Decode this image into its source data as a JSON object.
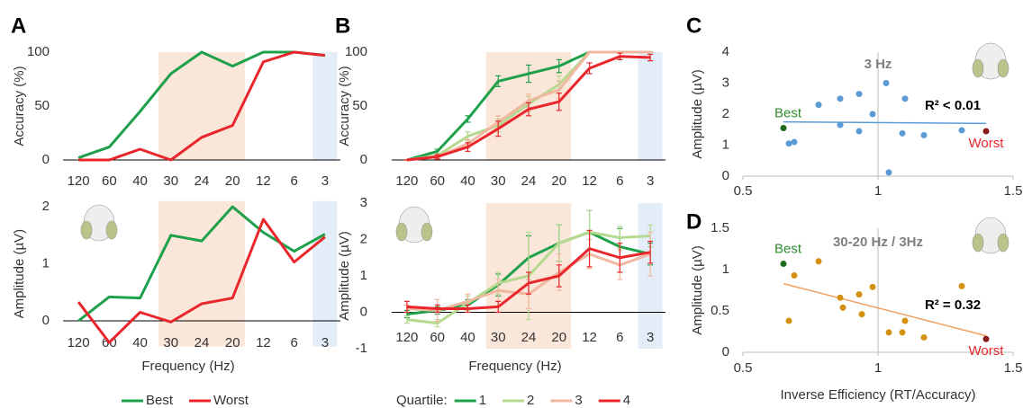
{
  "chart_data": [
    {
      "type": "line",
      "panel": "A",
      "ylabel": "Accuracy (%)",
      "categories": [
        "120",
        "60",
        "40",
        "30",
        "24",
        "20",
        "12",
        "6",
        "3"
      ],
      "series": [
        {
          "color": "#1fa04a",
          "values": [
            2,
            12,
            45,
            80,
            100,
            87,
            100,
            100,
            97
          ]
        },
        {
          "color": "#e8262b",
          "values": [
            0,
            0,
            10,
            0,
            21,
            32,
            91,
            100,
            97
          ]
        }
      ],
      "ylim": [
        0,
        100
      ],
      "yticks": [
        0,
        50,
        100
      ],
      "highlight": [
        {
          "from": "30",
          "to": "20",
          "color": "#fbe7da"
        },
        {
          "from": "3",
          "to": "3",
          "color": "#e3edf8"
        }
      ]
    },
    {
      "type": "line",
      "ylabel": "Amplitude (µV)",
      "xlabel": "Frequency (Hz)",
      "categories": [
        "120",
        "60",
        "40",
        "30",
        "24",
        "20",
        "12",
        "6",
        "3"
      ],
      "series": [
        {
          "name": "Best",
          "color": "#1fa04a",
          "values": [
            0,
            0.42,
            0.4,
            1.5,
            1.4,
            2.0,
            1.55,
            1.22,
            1.52
          ]
        },
        {
          "name": "Worst",
          "color": "#e8262b",
          "values": [
            0.33,
            -0.38,
            0.15,
            -0.02,
            0.3,
            0.4,
            1.78,
            1.03,
            1.47
          ]
        }
      ],
      "ylim": [
        -0.45,
        2.1
      ],
      "yticks": [
        0,
        1,
        2
      ],
      "legend": "bottom",
      "highlight": [
        {
          "from": "30",
          "to": "20",
          "color": "#fbe7da"
        },
        {
          "from": "3",
          "to": "3",
          "color": "#e3edf8"
        }
      ]
    },
    {
      "type": "line",
      "panel": "B",
      "ylabel": "Accuracy (%)",
      "categories": [
        "120",
        "60",
        "40",
        "30",
        "24",
        "20",
        "12",
        "6",
        "3"
      ],
      "series": [
        {
          "color": "#1fa04a",
          "values": [
            0,
            8,
            38,
            73,
            80,
            87,
            100,
            100,
            100
          ],
          "errors": [
            0,
            2,
            3,
            5,
            8,
            6,
            0,
            0,
            0
          ]
        },
        {
          "color": "#b5d98f",
          "values": [
            0,
            4,
            22,
            32,
            52,
            70,
            100,
            100,
            100
          ],
          "errors": [
            0,
            2,
            4,
            6,
            7,
            8,
            0,
            0,
            0
          ]
        },
        {
          "color": "#f0b8a0",
          "values": [
            0,
            3,
            15,
            35,
            55,
            65,
            100,
            100,
            100
          ],
          "errors": [
            0,
            2,
            4,
            6,
            6,
            8,
            0,
            0,
            0
          ]
        },
        {
          "color": "#e8262b",
          "values": [
            0,
            3,
            12,
            29,
            47,
            54,
            85,
            96,
            95
          ],
          "errors": [
            0,
            2,
            4,
            7,
            6,
            8,
            5,
            3,
            3
          ]
        }
      ],
      "ylim": [
        0,
        100
      ],
      "yticks": [
        0,
        50,
        100
      ],
      "highlight": [
        {
          "from": "30",
          "to": "20",
          "color": "#fbe7da"
        },
        {
          "from": "3",
          "to": "3",
          "color": "#e3edf8"
        }
      ]
    },
    {
      "type": "line",
      "ylabel": "Amplitude (µV)",
      "xlabel": "Frequency (Hz)",
      "categories": [
        "120",
        "60",
        "40",
        "30",
        "24",
        "20",
        "12",
        "6",
        "3"
      ],
      "series": [
        {
          "name": "1",
          "color": "#1fa04a",
          "values": [
            -0.05,
            0.05,
            0.2,
            0.75,
            1.5,
            1.9,
            2.2,
            1.8,
            1.6
          ],
          "errors": [
            0.1,
            0.1,
            0.15,
            0.3,
            0.6,
            0.5,
            0.6,
            0.5,
            0.3
          ]
        },
        {
          "name": "2",
          "color": "#b5d98f",
          "values": [
            -0.2,
            -0.3,
            0.25,
            0.8,
            1.0,
            1.9,
            2.2,
            2.05,
            2.1
          ],
          "errors": [
            0.1,
            0.1,
            0.2,
            0.3,
            1.2,
            0.5,
            0.6,
            0.3,
            0.3
          ]
        },
        {
          "name": "3",
          "color": "#f0b8a0",
          "values": [
            0.1,
            0.05,
            0.3,
            0.6,
            0.5,
            1.1,
            1.6,
            1.3,
            1.6
          ],
          "errors": [
            0.1,
            0.3,
            0.2,
            0.3,
            0.4,
            0.5,
            0.4,
            0.4,
            0.6
          ]
        },
        {
          "name": "4",
          "color": "#e8262b",
          "values": [
            0.15,
            0.1,
            0.1,
            0.15,
            0.8,
            1.0,
            1.75,
            1.5,
            1.65
          ],
          "errors": [
            0.15,
            0.1,
            0.1,
            0.15,
            0.3,
            0.3,
            0.5,
            0.4,
            0.3
          ]
        }
      ],
      "ylim": [
        -1,
        3
      ],
      "yticks": [
        -1,
        0,
        1,
        2,
        3
      ],
      "legend": "bottom",
      "legend_title": "Quartile:",
      "highlight": [
        {
          "from": "30",
          "to": "20",
          "color": "#fbe7da"
        },
        {
          "from": "3",
          "to": "3",
          "color": "#e3edf8"
        }
      ]
    },
    {
      "type": "scatter",
      "panel": "C",
      "title": "3 Hz",
      "ylabel": "Amplitude (µV)",
      "annotation": "R² < 0.01",
      "series": [
        {
          "color": "#5b9bd5",
          "x": [
            0.67,
            0.69,
            0.78,
            0.86,
            0.86,
            0.93,
            0.93,
            0.98,
            1.03,
            1.04,
            1.09,
            1.1,
            1.17,
            1.31
          ],
          "y": [
            1.05,
            1.1,
            2.3,
            2.5,
            1.65,
            2.65,
            1.45,
            2.0,
            3.0,
            0.12,
            1.38,
            2.5,
            1.32,
            1.48
          ]
        },
        {
          "name": "Best",
          "color": "#1e6b1e",
          "label_color": "#2e8b2e",
          "x": [
            0.65
          ],
          "y": [
            1.55
          ]
        },
        {
          "name": "Worst",
          "color": "#8b1a1a",
          "label_color": "#e8262b",
          "x": [
            1.4
          ],
          "y": [
            1.45
          ]
        }
      ],
      "trendline": {
        "color": "#5b9bd5",
        "x": [
          0.65,
          1.4
        ],
        "y": [
          1.75,
          1.7
        ]
      },
      "xlim": [
        0.5,
        1.5
      ],
      "xticks": [
        0.5,
        1,
        1.5
      ],
      "ylim": [
        0,
        4
      ],
      "yticks": [
        0,
        1,
        2,
        3,
        4
      ],
      "y_axis_at": 1
    },
    {
      "type": "scatter",
      "panel": "D",
      "title": "30-20 Hz / 3Hz",
      "ylabel": "Amplitude (µV)",
      "xlabel": "Inverse Efficiency (RT/Accuracy)",
      "annotation": "R² = 0.32",
      "series": [
        {
          "color": "#d4900f",
          "x": [
            0.67,
            0.69,
            0.78,
            0.86,
            0.87,
            0.93,
            0.94,
            0.98,
            1.04,
            1.09,
            1.1,
            1.17,
            1.31
          ],
          "y": [
            0.38,
            0.93,
            1.1,
            0.66,
            0.54,
            0.7,
            0.46,
            0.79,
            0.24,
            0.24,
            0.38,
            0.18,
            0.8
          ]
        },
        {
          "name": "Best",
          "color": "#1e6b1e",
          "label_color": "#2e8b2e",
          "x": [
            0.65
          ],
          "y": [
            1.07
          ]
        },
        {
          "name": "Worst",
          "color": "#8b1a1a",
          "label_color": "#e8262b",
          "x": [
            1.4
          ],
          "y": [
            0.16
          ]
        }
      ],
      "trendline": {
        "color": "#f0a060",
        "x": [
          0.65,
          1.4
        ],
        "y": [
          0.83,
          0.2
        ]
      },
      "xlim": [
        0.5,
        1.5
      ],
      "xticks": [
        0.5,
        1,
        1.5
      ],
      "ylim": [
        0,
        1.5
      ],
      "yticks": [
        0,
        0.5,
        1,
        1.5
      ],
      "y_axis_at": 1
    }
  ]
}
